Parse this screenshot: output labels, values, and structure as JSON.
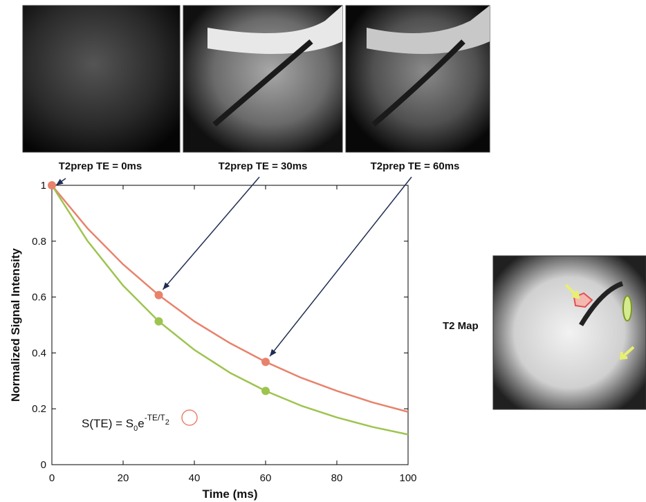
{
  "chart_data": {
    "type": "line",
    "x": [
      0,
      10,
      20,
      30,
      40,
      50,
      60,
      70,
      80,
      90,
      100
    ],
    "series": [
      {
        "color": "#e8826b",
        "values": [
          1,
          0.846,
          0.717,
          0.607,
          0.513,
          0.435,
          0.368,
          0.311,
          0.264,
          0.223,
          0.189
        ],
        "points": {
          "x": [
            0,
            30,
            60
          ],
          "values": [
            1,
            0.607,
            0.368
          ]
        }
      },
      {
        "color": "#9dc44f",
        "values": [
          1,
          0.801,
          0.641,
          0.513,
          0.411,
          0.329,
          0.264,
          0.211,
          0.169,
          0.135,
          0.108
        ],
        "points": {
          "x": [
            30,
            60
          ],
          "values": [
            0.513,
            0.264
          ]
        }
      }
    ],
    "xlabel": "Time (ms)",
    "ylabel": "Normalized Signal Intensity",
    "xlim": [
      0,
      100
    ],
    "xticks": [
      0,
      20,
      40,
      60,
      80,
      100
    ],
    "ylim": [
      0,
      1
    ],
    "yticks": [
      0,
      0.2,
      0.4,
      0.6,
      0.8,
      1
    ],
    "annotations": [
      "T2prep TE = 0ms",
      "T2prep TE = 30ms",
      "T2prep TE = 60ms"
    ],
    "formula": [
      "S(TE) = S",
      "0",
      "e",
      "-TE/T",
      "2"
    ]
  },
  "t2_map_label": "T2 Map"
}
